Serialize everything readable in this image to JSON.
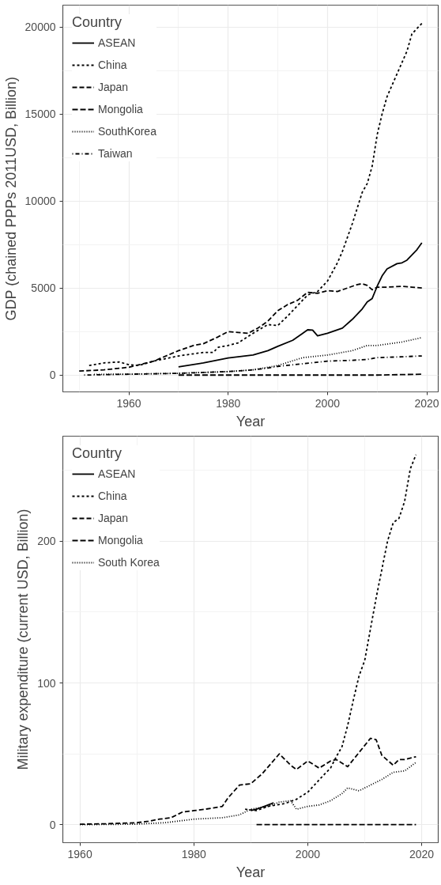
{
  "chart_data": [
    {
      "type": "line",
      "xlabel": "Year",
      "ylabel": "GDP (chained PPPs 2011USD, Billion)",
      "legend_title": "Country",
      "legend": "top left",
      "grid": true,
      "xlim": [
        1946.7,
        2022.3
      ],
      "ylim": [
        -966,
        21250
      ],
      "xticks": [
        1960,
        1980,
        2000,
        2020
      ],
      "yticks": [
        0,
        5000,
        10000,
        15000,
        20000
      ],
      "series": [
        {
          "name": "ASEAN",
          "color": "#000000",
          "line_style": "solid",
          "x": [
            1970,
            1975,
            1980,
            1985,
            1988,
            1990,
            1993,
            1995,
            1996,
            1997,
            1998,
            2000,
            2003,
            2005,
            2007,
            2008,
            2009,
            2010,
            2011,
            2012,
            2014,
            2015,
            2016,
            2018,
            2019
          ],
          "values": [
            470,
            700,
            980,
            1150,
            1400,
            1650,
            2000,
            2400,
            2600,
            2580,
            2250,
            2400,
            2700,
            3200,
            3800,
            4200,
            4400,
            5100,
            5700,
            6100,
            6400,
            6450,
            6600,
            7200,
            7600
          ]
        },
        {
          "name": "China",
          "color": "#000000",
          "line_style": "dashed",
          "x": [
            1952,
            1955,
            1958,
            1960,
            1962,
            1965,
            1970,
            1975,
            1977,
            1978,
            1980,
            1982,
            1985,
            1988,
            1990,
            1992,
            1994,
            1996,
            1998,
            2000,
            2002,
            2003,
            2004,
            2005,
            2006,
            2007,
            2008,
            2009,
            2010,
            2011,
            2012,
            2014,
            2016,
            2017,
            2018,
            2019
          ],
          "values": [
            550,
            700,
            750,
            600,
            550,
            800,
            1100,
            1300,
            1300,
            1600,
            1700,
            1850,
            2400,
            2900,
            2850,
            3400,
            4000,
            4600,
            4800,
            5400,
            6450,
            7100,
            7900,
            8700,
            9600,
            10500,
            11000,
            12000,
            13800,
            15000,
            16000,
            17300,
            18600,
            19600,
            19900,
            20200
          ]
        },
        {
          "name": "Japan",
          "color": "#000000",
          "line_style": "dashlong",
          "x": [
            1950,
            1955,
            1960,
            1965,
            1970,
            1973,
            1975,
            1978,
            1980,
            1982,
            1984,
            1986,
            1988,
            1990,
            1992,
            1994,
            1996,
            1998,
            2000,
            2002,
            2004,
            2006,
            2007,
            2008,
            2009,
            2010,
            2012,
            2015,
            2017,
            2019
          ],
          "values": [
            230,
            300,
            450,
            800,
            1400,
            1700,
            1800,
            2200,
            2500,
            2450,
            2400,
            2700,
            3100,
            3700,
            4050,
            4300,
            4750,
            4700,
            4850,
            4800,
            5000,
            5200,
            5250,
            5150,
            4900,
            5050,
            5050,
            5100,
            5050,
            5000
          ]
        },
        {
          "name": "Mongolia",
          "color": "#000000",
          "line_style": "longdash",
          "x": [
            1970,
            1980,
            1990,
            2000,
            2010,
            2019
          ],
          "values": [
            0,
            0,
            0,
            0,
            0,
            50
          ]
        },
        {
          "name": "SouthKorea",
          "color": "#000000",
          "line_style": "dotted",
          "x": [
            1953,
            1960,
            1970,
            1975,
            1980,
            1985,
            1990,
            1995,
            2000,
            2005,
            2008,
            2010,
            2015,
            2019
          ],
          "values": [
            40,
            50,
            100,
            150,
            200,
            300,
            550,
            1000,
            1150,
            1400,
            1700,
            1700,
            1900,
            2150
          ]
        },
        {
          "name": "Taiwan",
          "color": "#000000",
          "line_style": "dotdash",
          "x": [
            1951,
            1960,
            1970,
            1975,
            1980,
            1985,
            1988,
            1990,
            1995,
            2000,
            2005,
            2008,
            2010,
            2015,
            2019
          ],
          "values": [
            0,
            50,
            100,
            150,
            200,
            300,
            400,
            500,
            650,
            800,
            850,
            900,
            1000,
            1050,
            1100
          ]
        }
      ]
    },
    {
      "type": "line",
      "xlabel": "Year",
      "ylabel": "Military expenditure (current USD, Billion)",
      "legend_title": "Country",
      "legend": "top left",
      "grid": true,
      "xlim": [
        1957.0,
        2022.9
      ],
      "ylim": [
        -12.6,
        274
      ],
      "xticks": [
        1960,
        1980,
        2000,
        2020
      ],
      "yticks": [
        0,
        100,
        200
      ],
      "series": [
        {
          "name": "ASEAN",
          "color": "#000000",
          "line_style": "solid",
          "x": [
            1990,
            1991,
            1992,
            1993,
            1994
          ],
          "values": [
            10,
            11,
            12.5,
            14,
            15.5
          ]
        },
        {
          "name": "China",
          "color": "#000000",
          "line_style": "dashed",
          "x": [
            1989,
            1991,
            1993,
            1996,
            1998,
            2000,
            2003,
            2004,
            2005,
            2006,
            2007,
            2008,
            2009,
            2010,
            2011,
            2012,
            2013,
            2014,
            2015,
            2016,
            2017,
            2018,
            2019
          ],
          "values": [
            11,
            10,
            13,
            15,
            18,
            23,
            36,
            40,
            48,
            55,
            70,
            88,
            105,
            116,
            138,
            160,
            180,
            200,
            213,
            216,
            228,
            251,
            261
          ]
        },
        {
          "name": "Japan",
          "color": "#000000",
          "line_style": "dashlong",
          "x": [
            1960,
            1965,
            1970,
            1972,
            1974,
            1976,
            1978,
            1980,
            1982,
            1985,
            1986,
            1988,
            1990,
            1992,
            1995,
            1997,
            1998,
            2000,
            2002,
            2004,
            2005,
            2007,
            2009,
            2011,
            2012,
            2013,
            2015,
            2016,
            2017,
            2019
          ],
          "values": [
            0.4,
            0.8,
            1.5,
            2.5,
            4,
            5,
            9,
            10,
            11,
            13,
            19,
            28,
            29,
            36,
            50,
            42,
            39,
            45,
            40,
            45,
            46,
            41,
            51,
            61,
            60,
            49,
            42,
            46,
            46,
            48
          ]
        },
        {
          "name": "Mongolia",
          "color": "#000000",
          "line_style": "longdash",
          "x": [
            1991,
            2000,
            2010,
            2019
          ],
          "values": [
            0.1,
            0.1,
            0.1,
            0.1
          ]
        },
        {
          "name": "South Korea",
          "color": "#000000",
          "line_style": "dotted",
          "x": [
            1960,
            1970,
            1975,
            1980,
            1985,
            1988,
            1990,
            1993,
            1995,
            1997,
            1998,
            2000,
            2002,
            2004,
            2006,
            2007,
            2009,
            2011,
            2013,
            2015,
            2017,
            2019
          ],
          "values": [
            0.1,
            0.5,
            1.5,
            4,
            5,
            7,
            11,
            13,
            16,
            17,
            11,
            13,
            14,
            17,
            22,
            26,
            24,
            28,
            32,
            37,
            38,
            44
          ]
        }
      ]
    }
  ]
}
